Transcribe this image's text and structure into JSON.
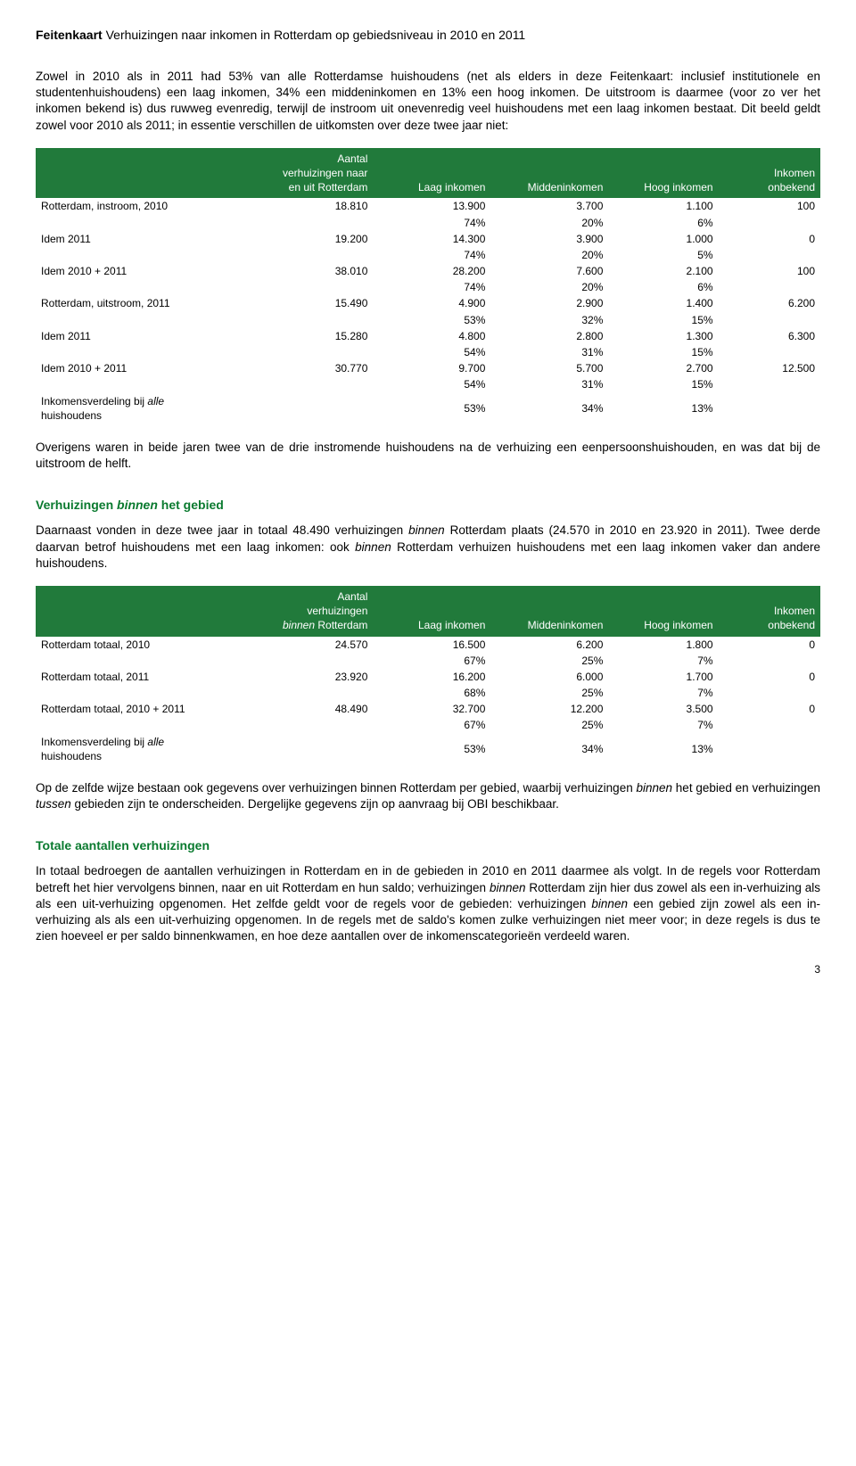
{
  "header": {
    "prefix": "Feitenkaart ",
    "title": "Verhuizingen naar inkomen in Rotterdam op gebiedsniveau in 2010 en 2011"
  },
  "intro": {
    "p1": "Zowel in 2010 als in 2011 had 53% van alle Rotterdamse huishoudens (net als elders in deze Feitenkaart: inclusief institutionele en studentenhuishoudens) een laag inkomen, 34% een middeninkomen en 13% een hoog inkomen. De uitstroom is daarmee (voor zo ver het inkomen bekend is) dus ruwweg evenredig, terwijl de instroom uit onevenredig veel huishoudens met een laag inkomen bestaat. Dit beeld geldt zowel voor 2010 als 2011; in essentie verschillen de uitkomsten over deze twee jaar niet:"
  },
  "table1": {
    "headers": {
      "c0": "",
      "c1_l1": "Aantal",
      "c1_l2": "verhuizingen naar",
      "c1_l3": "en uit Rotterdam",
      "c2": "Laag inkomen",
      "c3": "Middeninkomen",
      "c4": "Hoog inkomen",
      "c5_l1": "Inkomen",
      "c5_l2": "onbekend"
    },
    "rows": [
      {
        "label": "Rotterdam, instroom, 2010",
        "v": [
          "18.810",
          "13.900",
          "3.700",
          "1.100",
          "100"
        ],
        "pct": [
          "",
          "74%",
          "20%",
          "6%",
          ""
        ]
      },
      {
        "label": "Idem 2011",
        "v": [
          "19.200",
          "14.300",
          "3.900",
          "1.000",
          "0"
        ],
        "pct": [
          "",
          "74%",
          "20%",
          "5%",
          ""
        ]
      },
      {
        "label": "Idem 2010 + 2011",
        "v": [
          "38.010",
          "28.200",
          "7.600",
          "2.100",
          "100"
        ],
        "pct": [
          "",
          "74%",
          "20%",
          "6%",
          ""
        ]
      },
      {
        "label": "Rotterdam, uitstroom, 2011",
        "v": [
          "15.490",
          "4.900",
          "2.900",
          "1.400",
          "6.200"
        ],
        "pct": [
          "",
          "53%",
          "32%",
          "15%",
          ""
        ]
      },
      {
        "label": "Idem 2011",
        "v": [
          "15.280",
          "4.800",
          "2.800",
          "1.300",
          "6.300"
        ],
        "pct": [
          "",
          "54%",
          "31%",
          "15%",
          ""
        ]
      },
      {
        "label": "Idem 2010 + 2011",
        "v": [
          "30.770",
          "9.700",
          "5.700",
          "2.700",
          "12.500"
        ],
        "pct": [
          "",
          "54%",
          "31%",
          "15%",
          ""
        ]
      }
    ],
    "footer": {
      "label_l1": "Inkomensverdeling bij ",
      "label_ital": "alle",
      "label_l2": "huishoudens",
      "v": [
        "",
        "53%",
        "34%",
        "13%",
        ""
      ]
    }
  },
  "mid": {
    "p2": "Overigens waren in beide jaren twee van de drie instromende huishoudens na de verhuizing een eenpersoonshuishouden, en was dat bij de uitstroom de helft."
  },
  "section2": {
    "title_plain": "Verhuizingen ",
    "title_ital": "binnen",
    "title_rest": " het gebied",
    "p_a": "Daarnaast vonden in deze twee jaar in totaal 48.490 verhuizingen ",
    "p_b_ital": "binnen",
    "p_c": " Rotterdam plaats (24.570 in 2010 en 23.920 in 2011). Twee derde daarvan betrof huishoudens met een laag inkomen: ook ",
    "p_d_ital": "binnen",
    "p_e": " Rotterdam verhuizen huishoudens met een laag inkomen vaker dan andere huishoudens."
  },
  "table2": {
    "headers": {
      "c0": "",
      "c1_l1": "Aantal",
      "c1_l2": "verhuizingen",
      "c1_l3_ital": "binnen",
      "c1_l3_rest": " Rotterdam",
      "c2": "Laag inkomen",
      "c3": "Middeninkomen",
      "c4": "Hoog inkomen",
      "c5_l1": "Inkomen",
      "c5_l2": "onbekend"
    },
    "rows": [
      {
        "label": "Rotterdam totaal, 2010",
        "v": [
          "24.570",
          "16.500",
          "6.200",
          "1.800",
          "0"
        ],
        "pct": [
          "",
          "67%",
          "25%",
          "7%",
          ""
        ]
      },
      {
        "label": "Rotterdam totaal, 2011",
        "v": [
          "23.920",
          "16.200",
          "6.000",
          "1.700",
          "0"
        ],
        "pct": [
          "",
          "68%",
          "25%",
          "7%",
          ""
        ]
      },
      {
        "label": "Rotterdam totaal, 2010 + 2011",
        "v": [
          "48.490",
          "32.700",
          "12.200",
          "3.500",
          "0"
        ],
        "pct": [
          "",
          "67%",
          "25%",
          "7%",
          ""
        ]
      }
    ],
    "footer": {
      "label_l1": "Inkomensverdeling bij ",
      "label_ital": "alle",
      "label_l2": "huishoudens",
      "v": [
        "",
        "53%",
        "34%",
        "13%",
        ""
      ]
    }
  },
  "after2": {
    "p_a": "Op de zelfde wijze bestaan ook gegevens over verhuizingen binnen Rotterdam per gebied, waarbij verhuizingen ",
    "p_b_ital": "binnen",
    "p_c": " het gebied en verhuizingen ",
    "p_d_ital": "tussen",
    "p_e": " gebieden zijn te onderscheiden. Dergelijke gegevens zijn op aanvraag bij OBI beschikbaar."
  },
  "section3": {
    "title": "Totale aantallen verhuizingen",
    "p_a": "In totaal bedroegen de aantallen verhuizingen in Rotterdam en in de gebieden in 2010 en 2011 daarmee als volgt. In de regels voor Rotterdam betreft het hier vervolgens binnen, naar en uit Rotterdam en hun saldo; verhuizingen ",
    "p_b_ital": "binnen",
    "p_c": " Rotterdam zijn hier dus zowel als een in-verhuizing als als een uit-verhuizing opgenomen. Het zelfde geldt voor de regels voor de gebieden: verhuizingen ",
    "p_d_ital": "binnen",
    "p_e": " een gebied zijn zowel als een in-verhuizing als als een uit-verhuizing opgenomen. In de regels met de saldo's komen zulke verhuizingen niet meer voor; in deze regels is dus te zien hoeveel er per saldo binnenkwamen, en hoe deze aantallen over de inkomenscategorieën verdeeld waren."
  },
  "page": "3"
}
